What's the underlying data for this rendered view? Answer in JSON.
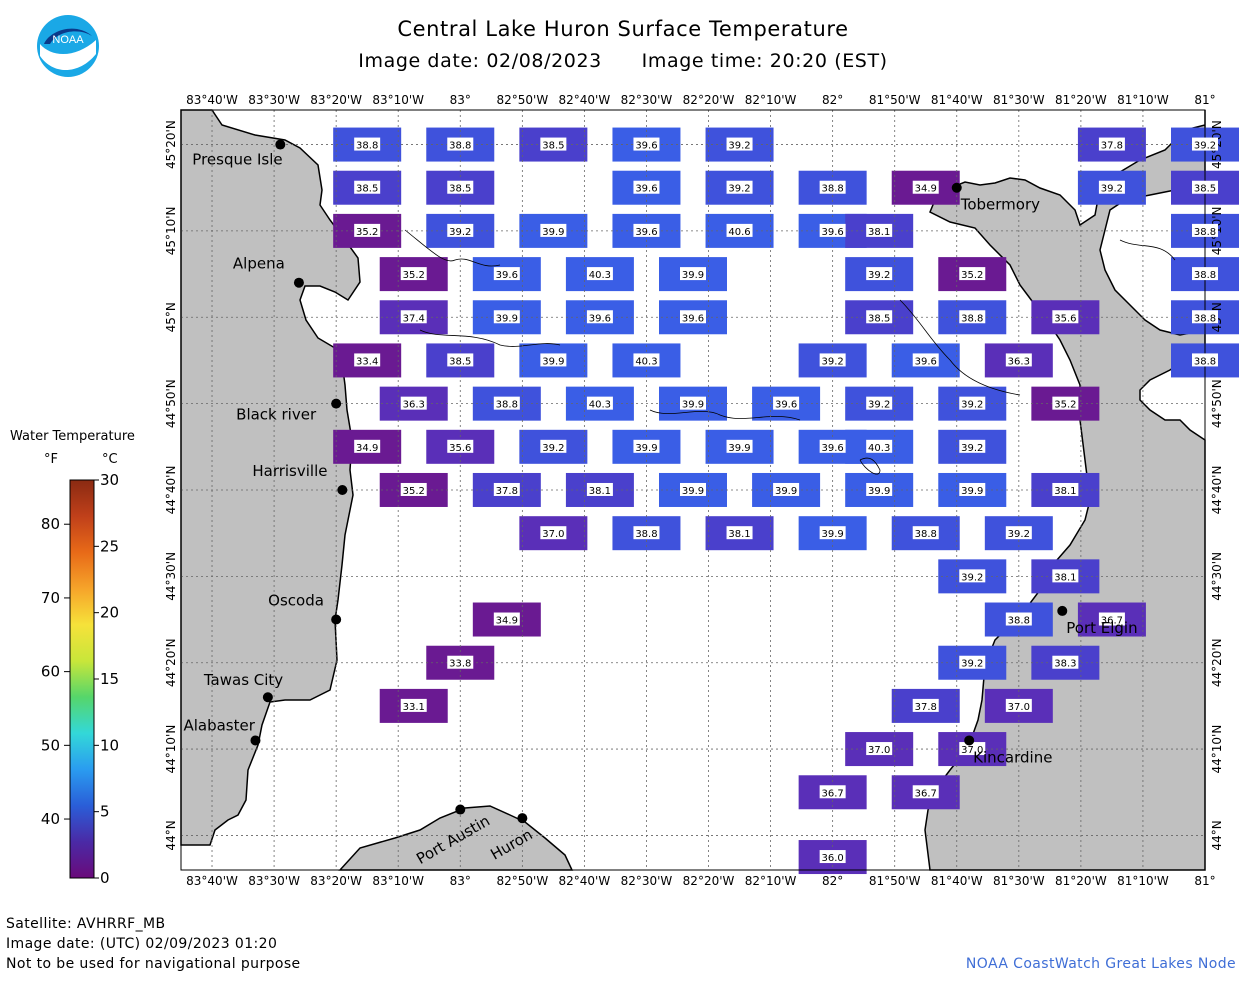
{
  "header": {
    "title": "Central Lake Huron Surface Temperature",
    "image_date_label": "Image date:",
    "image_date": "02/08/2023",
    "image_time_label": "Image time:",
    "image_time": "20:20 (EST)"
  },
  "logo": {
    "text": "NOAA",
    "icon": "noaa-logo"
  },
  "map": {
    "longitude_labels": [
      "83°40'W",
      "83°30'W",
      "83°20'W",
      "83°10'W",
      "83°",
      "82°50'W",
      "82°40'W",
      "82°30'W",
      "82°20'W",
      "82°10'W",
      "82°",
      "81°50'W",
      "81°40'W",
      "81°30'W",
      "81°20'W",
      "81°10'W",
      "81°"
    ],
    "longitudes": [
      -83.6667,
      -83.5,
      -83.3333,
      -83.1667,
      -83,
      -82.8333,
      -82.6667,
      -82.5,
      -82.3333,
      -82.1667,
      -82,
      -81.8333,
      -81.6667,
      -81.5,
      -81.3333,
      -81.1667,
      -81
    ],
    "latitude_labels": [
      "45°20'N",
      "45°10'N",
      "45°N",
      "44°50'N",
      "44°40'N",
      "44°30'N",
      "44°20'N",
      "44°10'N",
      "44°N"
    ],
    "latitudes": [
      45.3333,
      45.1667,
      45,
      44.8333,
      44.6667,
      44.5,
      44.3333,
      44.1667,
      44
    ],
    "cities": [
      {
        "name": "Presque Isle",
        "lon": -83.4833,
        "lat": 45.3333
      },
      {
        "name": "Alpena",
        "lon": -83.4333,
        "lat": 45.0667
      },
      {
        "name": "Black river",
        "lon": -83.3333,
        "lat": 44.8333
      },
      {
        "name": "Harrisville",
        "lon": -83.3167,
        "lat": 44.6667
      },
      {
        "name": "Oscoda",
        "lon": -83.3333,
        "lat": 44.4167
      },
      {
        "name": "Tawas City",
        "lon": -83.5167,
        "lat": 44.2667
      },
      {
        "name": "Alabaster",
        "lon": -83.55,
        "lat": 44.1833
      },
      {
        "name": "Port Austin",
        "lon": -83.0,
        "lat": 44.05
      },
      {
        "name": "Huron",
        "lon": -82.8333,
        "lat": 44.0333
      },
      {
        "name": "Tobermory",
        "lon": -81.6667,
        "lat": 45.25
      },
      {
        "name": "Port Elgin",
        "lon": -81.3833,
        "lat": 44.4333
      },
      {
        "name": "Kincardine",
        "lon": -81.6333,
        "lat": 44.1833
      }
    ],
    "temperatures_f": [
      {
        "v": "38.8",
        "lon": -83.25,
        "lat": 45.3333
      },
      {
        "v": "38.8",
        "lon": -83.0,
        "lat": 45.3333
      },
      {
        "v": "38.5",
        "lon": -82.75,
        "lat": 45.3333
      },
      {
        "v": "39.6",
        "lon": -82.5,
        "lat": 45.3333
      },
      {
        "v": "39.2",
        "lon": -82.25,
        "lat": 45.3333
      },
      {
        "v": "37.8",
        "lon": -81.25,
        "lat": 45.3333
      },
      {
        "v": "39.2",
        "lon": -81.0,
        "lat": 45.3333
      },
      {
        "v": "38.5",
        "lon": -83.25,
        "lat": 45.25
      },
      {
        "v": "38.5",
        "lon": -83.0,
        "lat": 45.25
      },
      {
        "v": "39.6",
        "lon": -82.5,
        "lat": 45.25
      },
      {
        "v": "39.2",
        "lon": -82.25,
        "lat": 45.25
      },
      {
        "v": "38.8",
        "lon": -82.0,
        "lat": 45.25
      },
      {
        "v": "34.9",
        "lon": -81.75,
        "lat": 45.25
      },
      {
        "v": "39.2",
        "lon": -81.25,
        "lat": 45.25
      },
      {
        "v": "38.5",
        "lon": -81.0,
        "lat": 45.25
      },
      {
        "v": "35.2",
        "lon": -83.25,
        "lat": 45.1667
      },
      {
        "v": "39.2",
        "lon": -83.0,
        "lat": 45.1667
      },
      {
        "v": "39.9",
        "lon": -82.75,
        "lat": 45.1667
      },
      {
        "v": "39.6",
        "lon": -82.5,
        "lat": 45.1667
      },
      {
        "v": "40.6",
        "lon": -82.25,
        "lat": 45.1667
      },
      {
        "v": "39.6",
        "lon": -82.0,
        "lat": 45.1667
      },
      {
        "v": "38.1",
        "lon": -81.875,
        "lat": 45.1667
      },
      {
        "v": "38.8",
        "lon": -81.0,
        "lat": 45.1667
      },
      {
        "v": "35.2",
        "lon": -83.125,
        "lat": 45.0833
      },
      {
        "v": "39.6",
        "lon": -82.875,
        "lat": 45.0833
      },
      {
        "v": "40.3",
        "lon": -82.625,
        "lat": 45.0833
      },
      {
        "v": "39.9",
        "lon": -82.375,
        "lat": 45.0833
      },
      {
        "v": "39.2",
        "lon": -81.875,
        "lat": 45.0833
      },
      {
        "v": "35.2",
        "lon": -81.625,
        "lat": 45.0833
      },
      {
        "v": "38.8",
        "lon": -81.0,
        "lat": 45.0833
      },
      {
        "v": "37.4",
        "lon": -83.125,
        "lat": 45.0
      },
      {
        "v": "39.9",
        "lon": -82.875,
        "lat": 45.0
      },
      {
        "v": "39.6",
        "lon": -82.625,
        "lat": 45.0
      },
      {
        "v": "39.6",
        "lon": -82.375,
        "lat": 45.0
      },
      {
        "v": "38.5",
        "lon": -81.875,
        "lat": 45.0
      },
      {
        "v": "38.8",
        "lon": -81.625,
        "lat": 45.0
      },
      {
        "v": "35.6",
        "lon": -81.375,
        "lat": 45.0
      },
      {
        "v": "38.8",
        "lon": -81.0,
        "lat": 45.0
      },
      {
        "v": "33.4",
        "lon": -83.25,
        "lat": 44.9167
      },
      {
        "v": "38.5",
        "lon": -83.0,
        "lat": 44.9167
      },
      {
        "v": "39.9",
        "lon": -82.75,
        "lat": 44.9167
      },
      {
        "v": "40.3",
        "lon": -82.5,
        "lat": 44.9167
      },
      {
        "v": "39.2",
        "lon": -82.0,
        "lat": 44.9167
      },
      {
        "v": "39.6",
        "lon": -81.75,
        "lat": 44.9167
      },
      {
        "v": "36.3",
        "lon": -81.5,
        "lat": 44.9167
      },
      {
        "v": "38.8",
        "lon": -81.0,
        "lat": 44.9167
      },
      {
        "v": "36.3",
        "lon": -83.125,
        "lat": 44.8333
      },
      {
        "v": "38.8",
        "lon": -82.875,
        "lat": 44.8333
      },
      {
        "v": "40.3",
        "lon": -82.625,
        "lat": 44.8333
      },
      {
        "v": "39.9",
        "lon": -82.375,
        "lat": 44.8333
      },
      {
        "v": "39.6",
        "lon": -82.125,
        "lat": 44.8333
      },
      {
        "v": "39.2",
        "lon": -81.875,
        "lat": 44.8333
      },
      {
        "v": "39.2",
        "lon": -81.625,
        "lat": 44.8333
      },
      {
        "v": "35.2",
        "lon": -81.375,
        "lat": 44.8333
      },
      {
        "v": "34.9",
        "lon": -83.25,
        "lat": 44.75
      },
      {
        "v": "35.6",
        "lon": -83.0,
        "lat": 44.75
      },
      {
        "v": "39.2",
        "lon": -82.75,
        "lat": 44.75
      },
      {
        "v": "39.9",
        "lon": -82.5,
        "lat": 44.75
      },
      {
        "v": "39.9",
        "lon": -82.25,
        "lat": 44.75
      },
      {
        "v": "39.6",
        "lon": -82.0,
        "lat": 44.75
      },
      {
        "v": "40.3",
        "lon": -81.875,
        "lat": 44.75
      },
      {
        "v": "39.2",
        "lon": -81.625,
        "lat": 44.75
      },
      {
        "v": "35.2",
        "lon": -83.125,
        "lat": 44.6667
      },
      {
        "v": "37.8",
        "lon": -82.875,
        "lat": 44.6667
      },
      {
        "v": "38.1",
        "lon": -82.625,
        "lat": 44.6667
      },
      {
        "v": "39.9",
        "lon": -82.375,
        "lat": 44.6667
      },
      {
        "v": "39.9",
        "lon": -82.125,
        "lat": 44.6667
      },
      {
        "v": "39.9",
        "lon": -81.875,
        "lat": 44.6667
      },
      {
        "v": "39.9",
        "lon": -81.625,
        "lat": 44.6667
      },
      {
        "v": "38.1",
        "lon": -81.375,
        "lat": 44.6667
      },
      {
        "v": "37.0",
        "lon": -82.75,
        "lat": 44.5833
      },
      {
        "v": "38.8",
        "lon": -82.5,
        "lat": 44.5833
      },
      {
        "v": "38.1",
        "lon": -82.25,
        "lat": 44.5833
      },
      {
        "v": "39.9",
        "lon": -82.0,
        "lat": 44.5833
      },
      {
        "v": "38.8",
        "lon": -81.75,
        "lat": 44.5833
      },
      {
        "v": "39.2",
        "lon": -81.5,
        "lat": 44.5833
      },
      {
        "v": "39.2",
        "lon": -81.625,
        "lat": 44.5
      },
      {
        "v": "38.1",
        "lon": -81.375,
        "lat": 44.5
      },
      {
        "v": "34.9",
        "lon": -82.875,
        "lat": 44.4167
      },
      {
        "v": "38.8",
        "lon": -81.5,
        "lat": 44.4167
      },
      {
        "v": "36.7",
        "lon": -81.25,
        "lat": 44.4167
      },
      {
        "v": "33.8",
        "lon": -83.0,
        "lat": 44.3333
      },
      {
        "v": "39.2",
        "lon": -81.625,
        "lat": 44.3333
      },
      {
        "v": "38.3",
        "lon": -81.375,
        "lat": 44.3333
      },
      {
        "v": "33.1",
        "lon": -83.125,
        "lat": 44.25
      },
      {
        "v": "37.8",
        "lon": -81.75,
        "lat": 44.25
      },
      {
        "v": "37.0",
        "lon": -81.5,
        "lat": 44.25
      },
      {
        "v": "37.0",
        "lon": -81.875,
        "lat": 44.1667
      },
      {
        "v": "37.0",
        "lon": -81.625,
        "lat": 44.1667
      },
      {
        "v": "36.7",
        "lon": -82.0,
        "lat": 44.0833
      },
      {
        "v": "36.7",
        "lon": -81.75,
        "lat": 44.0833
      },
      {
        "v": "36.0",
        "lon": -82.0,
        "lat": 43.9583
      }
    ]
  },
  "legend": {
    "title": "Water Temperature",
    "unit_f": "°F",
    "unit_c": "°C",
    "f_ticks": [
      "80",
      "70",
      "60",
      "50",
      "40"
    ],
    "c_ticks": [
      "30",
      "25",
      "20",
      "15",
      "10",
      "5",
      "0"
    ],
    "colors": [
      "#6a0a7a",
      "#4a2aa6",
      "#2a5ed8",
      "#2a9cf0",
      "#33d8d8",
      "#56d66a",
      "#c8e63a",
      "#f6e23a",
      "#f6a42a",
      "#e86a18",
      "#c0401a",
      "#8a2a12"
    ]
  },
  "footer": {
    "satellite": "Satellite: AVHRRF_MB",
    "image_date_utc": "Image date: (UTC) 02/09/2023  01:20",
    "disclaimer": "Not to be used for navigational purpose",
    "credit": "NOAA CoastWatch Great Lakes Node"
  }
}
